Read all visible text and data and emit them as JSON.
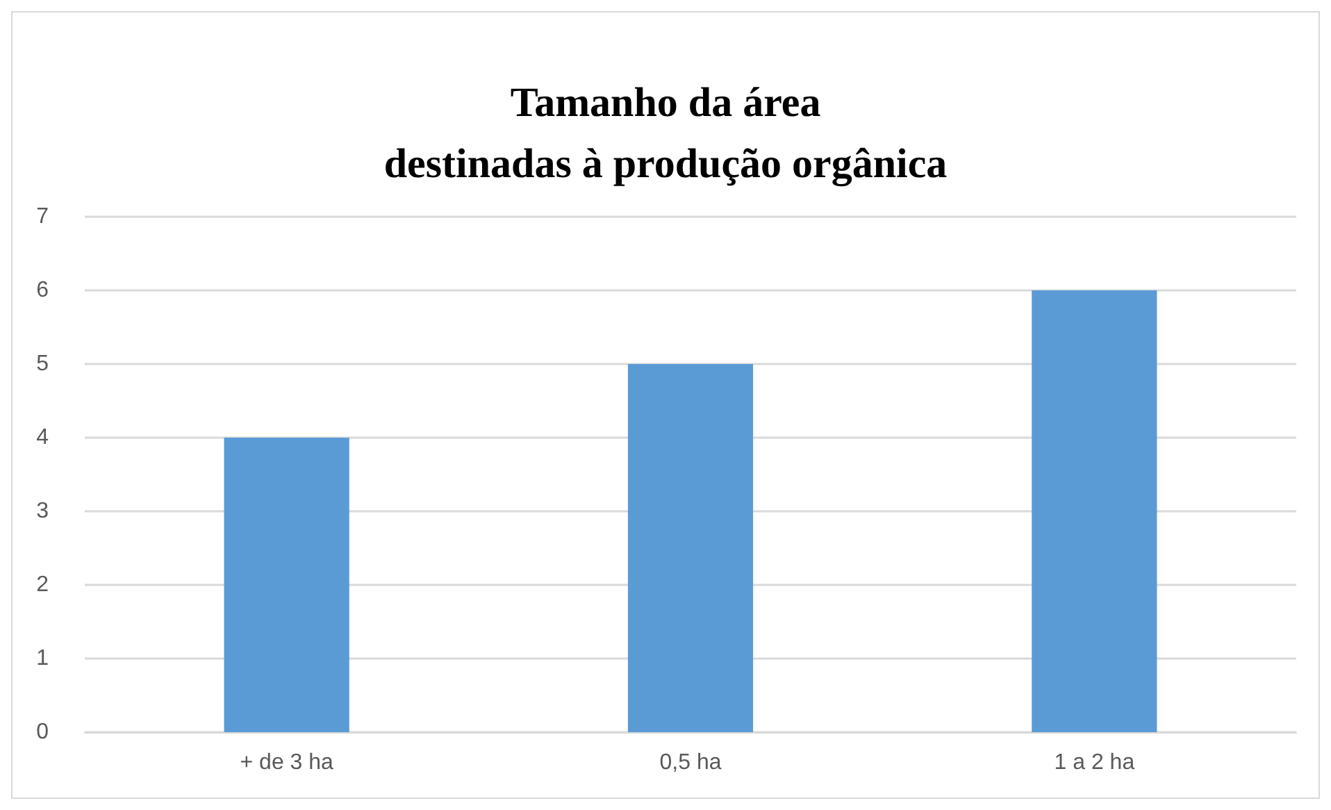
{
  "chart_data": {
    "type": "bar",
    "title": "Tamanho da área\ndestinadas à produção orgânica",
    "categories": [
      "+ de 3 ha",
      "0,5 ha",
      "1 a 2 ha"
    ],
    "values": [
      4,
      5,
      6
    ],
    "color": "#5b9bd5",
    "ylim": [
      0,
      7
    ],
    "yticks": [
      0,
      1,
      2,
      3,
      4,
      5,
      6,
      7
    ],
    "grid": "y"
  }
}
